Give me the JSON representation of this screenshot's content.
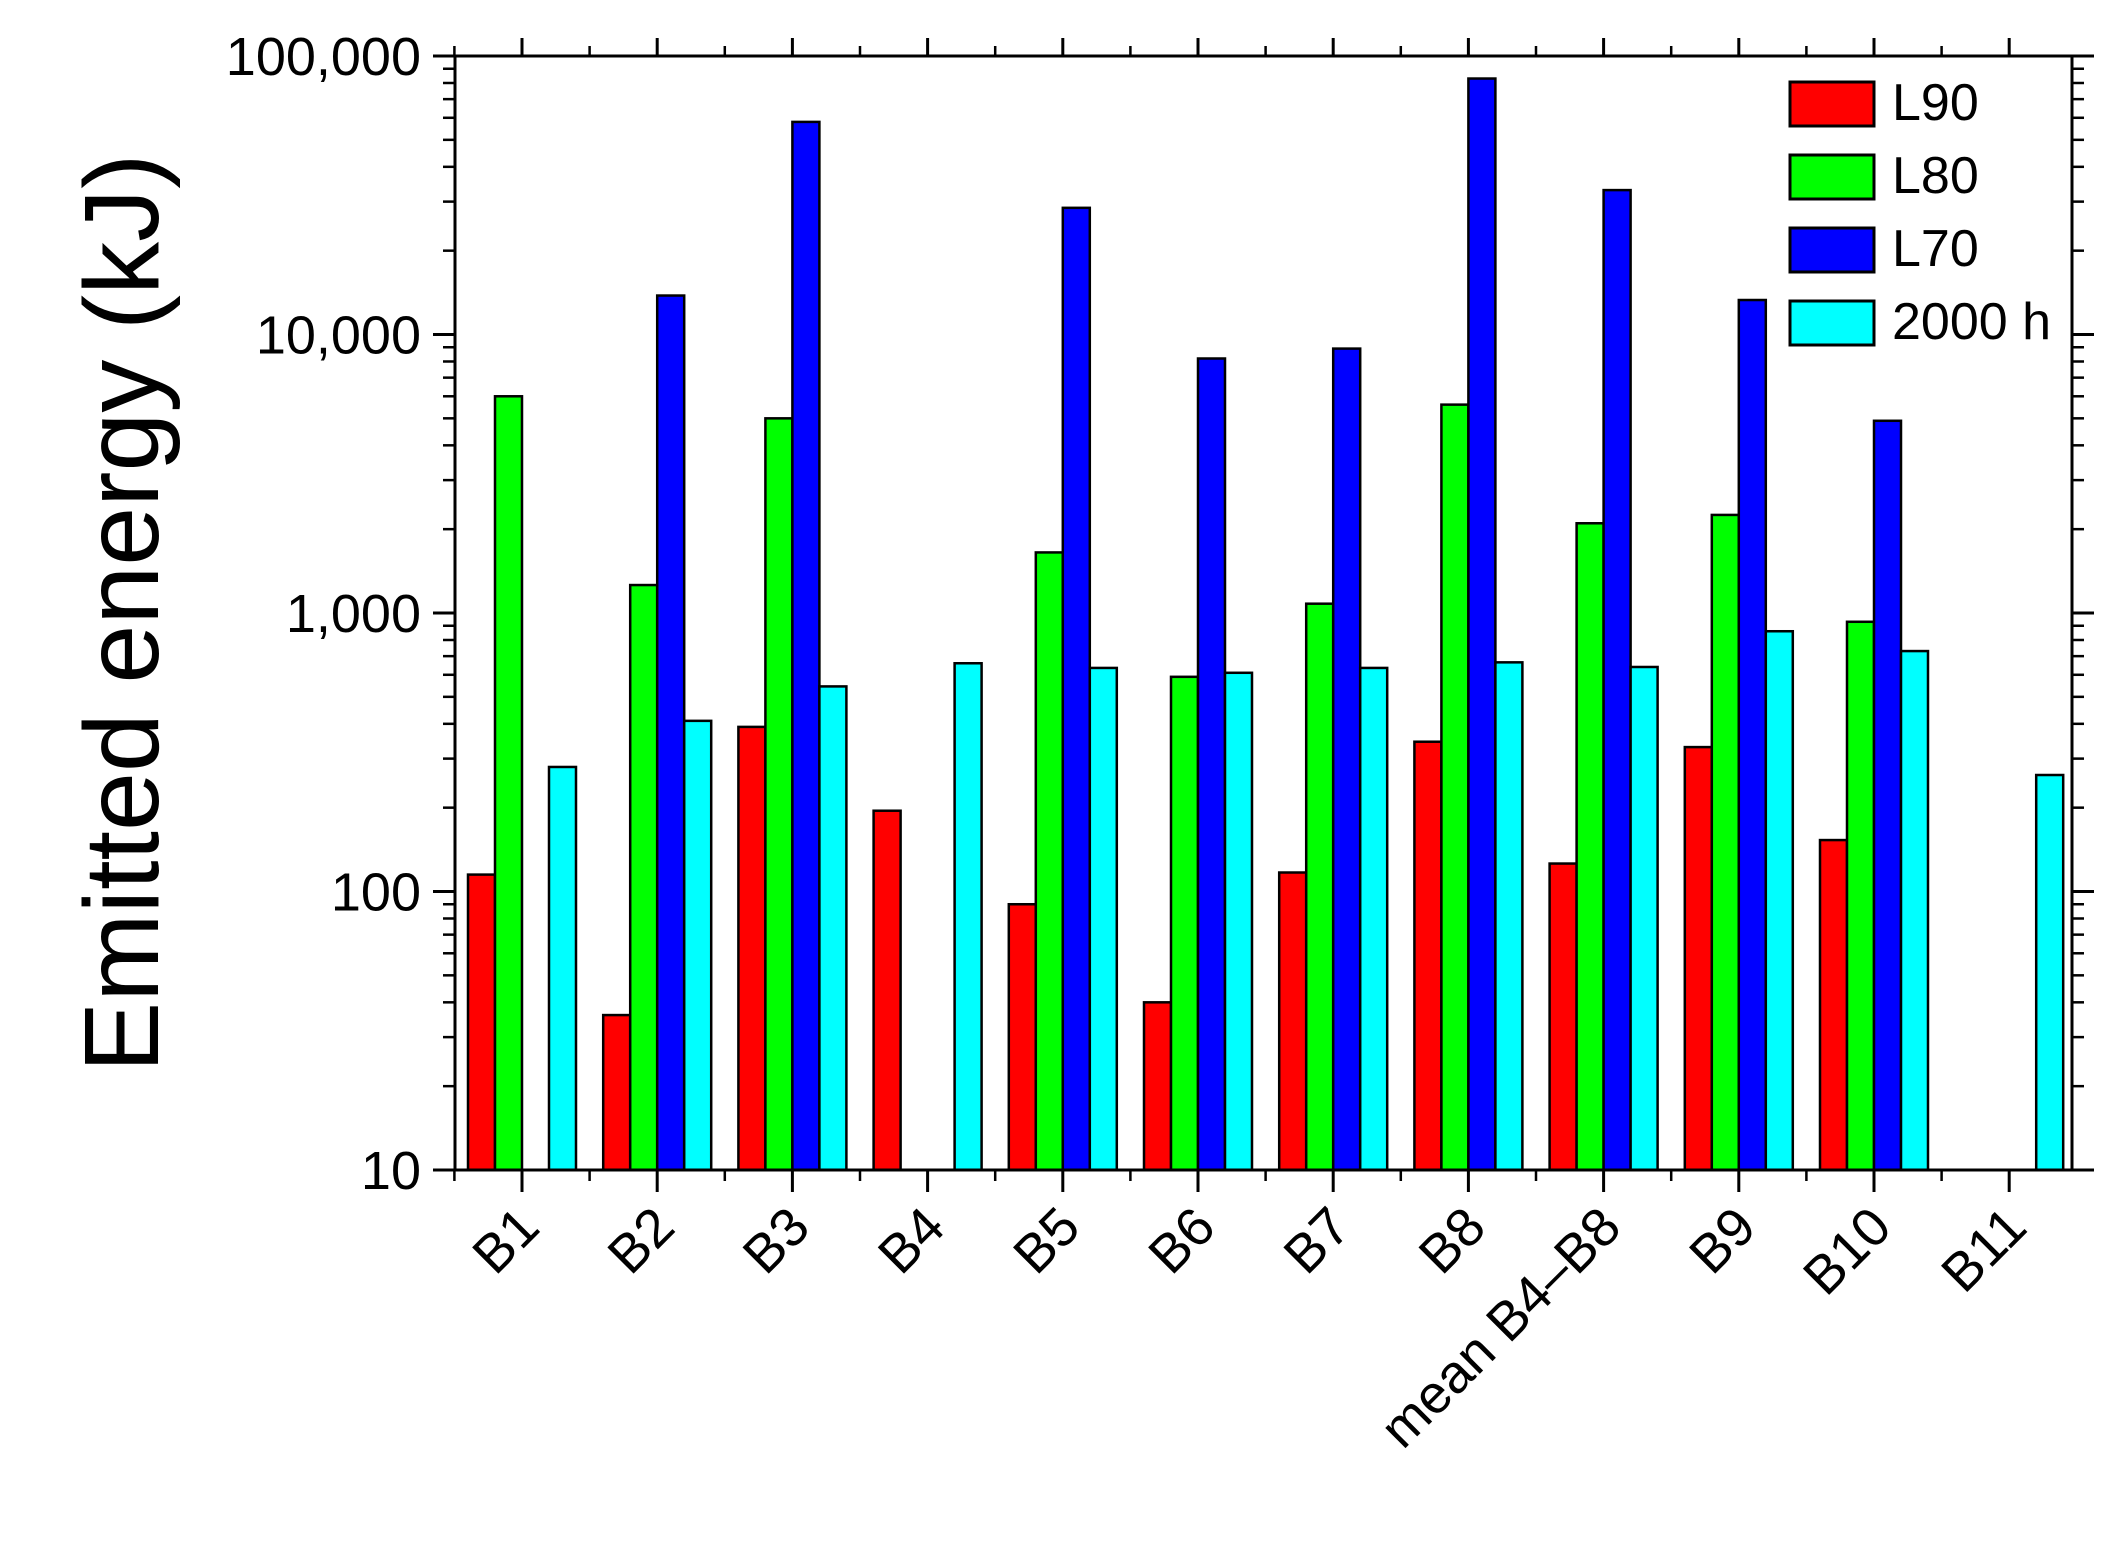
{
  "chart_data": {
    "type": "bar",
    "yscale": "log",
    "ylabel": "Emitted energy (kJ)",
    "xlabel": "",
    "ylim": [
      10,
      100000
    ],
    "yticks": [
      10,
      100,
      1000,
      10000,
      100000
    ],
    "ytick_labels": [
      "10",
      "100",
      "1,000",
      "10,000",
      "100,000"
    ],
    "legend_position": "top-right",
    "categories": [
      "B1",
      "B2",
      "B3",
      "B4",
      "B5",
      "B6",
      "B7",
      "B8",
      "mean B4–B8",
      "B9",
      "B10",
      "B11"
    ],
    "series": [
      {
        "name": "L90",
        "color": "#ff0000",
        "values": [
          115,
          36,
          390,
          195,
          90,
          40,
          117,
          345,
          126,
          330,
          153,
          null
        ]
      },
      {
        "name": "L80",
        "color": "#00ff00",
        "values": [
          6000,
          1260,
          5000,
          null,
          1650,
          590,
          1080,
          5600,
          2100,
          2250,
          930,
          null
        ]
      },
      {
        "name": "L70",
        "color": "#0000ff",
        "values": [
          null,
          13800,
          58000,
          null,
          28500,
          8200,
          8900,
          83000,
          33000,
          13300,
          4900,
          null
        ]
      },
      {
        "name": "2000 h",
        "color": "#00ffff",
        "values": [
          280,
          410,
          545,
          660,
          635,
          610,
          635,
          665,
          640,
          860,
          730,
          262
        ]
      }
    ]
  }
}
